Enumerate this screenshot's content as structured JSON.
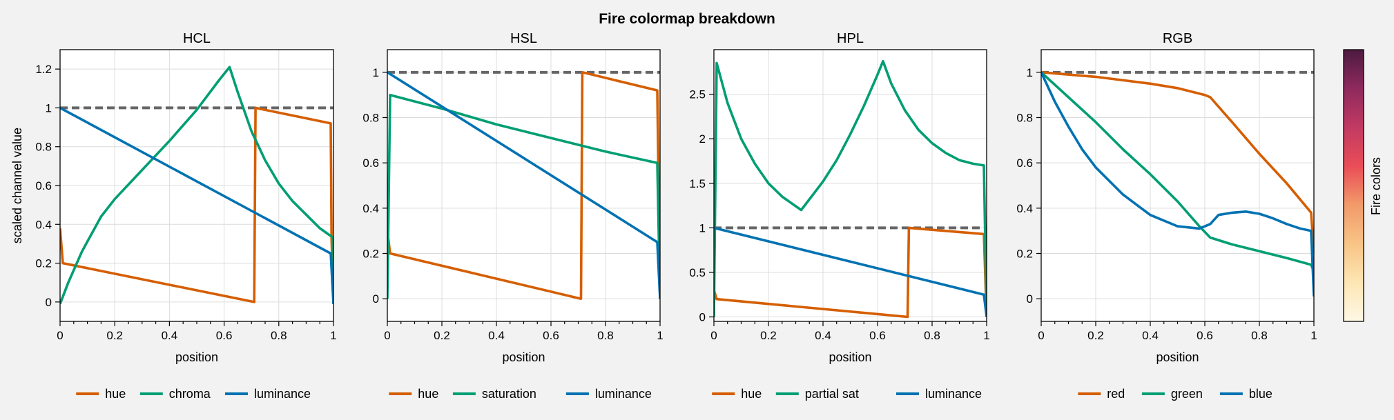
{
  "figure": {
    "title": "Fire colormap breakdown",
    "colorbar_label": "Fire colors",
    "colors": {
      "orange": "#d55e00",
      "green": "#009e73",
      "blue": "#0072b2",
      "reference": "#666666",
      "grid": "#dcdcdc",
      "background": "#f2f2f2"
    },
    "colorbar_stops": [
      "#fff8e6",
      "#fde6b4",
      "#f8c486",
      "#f29a6a",
      "#ea4d57",
      "#c23a62",
      "#8e2a5e",
      "#4c1a40"
    ]
  },
  "chart_data": [
    {
      "type": "line",
      "title": "HCL",
      "xlabel": "position",
      "ylabel": "scaled channel value",
      "xlim": [
        0,
        1
      ],
      "ylim": [
        -0.1,
        1.3
      ],
      "xticks": [
        0,
        0.2,
        0.4,
        0.6,
        0.8,
        1
      ],
      "xtick_labels": [
        "0",
        "0.2",
        "0.4",
        "0.6",
        "0.8",
        "1"
      ],
      "yticks": [
        0,
        0.2,
        0.4,
        0.6,
        0.8,
        1,
        1.2
      ],
      "ytick_labels": [
        "0",
        "0.2",
        "0.4",
        "0.6",
        "0.8",
        "1",
        "1.2"
      ],
      "grid": true,
      "legend": "bottom",
      "reference_line": 1,
      "series": [
        {
          "name": "hue",
          "color": "#d55e00",
          "points": [
            [
              0,
              0.38
            ],
            [
              0.01,
              0.2
            ],
            [
              0.71,
              0
            ],
            [
              0.715,
              1
            ],
            [
              0.99,
              0.92
            ],
            [
              0.993,
              0.33
            ],
            [
              1,
              -0.01
            ]
          ]
        },
        {
          "name": "chroma",
          "color": "#009e73",
          "points": [
            [
              0,
              -0.01
            ],
            [
              0.03,
              0.1
            ],
            [
              0.08,
              0.26
            ],
            [
              0.15,
              0.44
            ],
            [
              0.2,
              0.53
            ],
            [
              0.3,
              0.68
            ],
            [
              0.4,
              0.83
            ],
            [
              0.5,
              0.99
            ],
            [
              0.58,
              1.14
            ],
            [
              0.62,
              1.21
            ],
            [
              0.65,
              1.08
            ],
            [
              0.7,
              0.88
            ],
            [
              0.75,
              0.73
            ],
            [
              0.8,
              0.61
            ],
            [
              0.85,
              0.52
            ],
            [
              0.9,
              0.45
            ],
            [
              0.95,
              0.38
            ],
            [
              1,
              0.33
            ],
            [
              1,
              -0.01
            ]
          ]
        },
        {
          "name": "luminance",
          "color": "#0072b2",
          "points": [
            [
              0,
              1
            ],
            [
              0.99,
              0.25
            ],
            [
              1,
              -0.01
            ]
          ]
        }
      ]
    },
    {
      "type": "line",
      "title": "HSL",
      "xlabel": "position",
      "ylabel": "",
      "xlim": [
        0,
        1
      ],
      "ylim": [
        -0.1,
        1.1
      ],
      "xticks": [
        0,
        0.2,
        0.4,
        0.6,
        0.8,
        1
      ],
      "xtick_labels": [
        "0",
        "0.2",
        "0.4",
        "0.6",
        "0.8",
        "1"
      ],
      "yticks": [
        0,
        0.2,
        0.4,
        0.6,
        0.8,
        1
      ],
      "ytick_labels": [
        "0",
        "0.2",
        "0.4",
        "0.6",
        "0.8",
        "1"
      ],
      "grid": true,
      "legend": "bottom",
      "reference_line": 1,
      "series": [
        {
          "name": "hue",
          "color": "#d55e00",
          "points": [
            [
              0,
              0.3
            ],
            [
              0.01,
              0.2
            ],
            [
              0.71,
              0
            ],
            [
              0.715,
              1
            ],
            [
              0.99,
              0.92
            ],
            [
              1,
              0
            ]
          ]
        },
        {
          "name": "saturation",
          "color": "#009e73",
          "points": [
            [
              0,
              0
            ],
            [
              0.01,
              0.9
            ],
            [
              0.2,
              0.84
            ],
            [
              0.4,
              0.77
            ],
            [
              0.6,
              0.71
            ],
            [
              0.8,
              0.65
            ],
            [
              0.99,
              0.6
            ],
            [
              1,
              0
            ]
          ]
        },
        {
          "name": "luminance",
          "color": "#0072b2",
          "points": [
            [
              0,
              1
            ],
            [
              0.99,
              0.25
            ],
            [
              1,
              0
            ]
          ]
        }
      ]
    },
    {
      "type": "line",
      "title": "HPL",
      "xlabel": "position",
      "ylabel": "",
      "xlim": [
        0,
        1
      ],
      "ylim": [
        -0.05,
        3.0
      ],
      "xticks": [
        0,
        0.2,
        0.4,
        0.6,
        0.8,
        1
      ],
      "xtick_labels": [
        "0",
        "0.2",
        "0.4",
        "0.6",
        "0.8",
        "1"
      ],
      "yticks": [
        0,
        0.5,
        1,
        1.5,
        2,
        2.5
      ],
      "ytick_labels": [
        "0",
        "0.5",
        "1",
        "1.5",
        "2",
        "2.5"
      ],
      "grid": true,
      "legend": "bottom",
      "reference_line": 1,
      "series": [
        {
          "name": "hue",
          "color": "#d55e00",
          "points": [
            [
              0,
              0.3
            ],
            [
              0.01,
              0.2
            ],
            [
              0.71,
              0
            ],
            [
              0.715,
              1
            ],
            [
              0.99,
              0.93
            ],
            [
              1,
              0
            ]
          ]
        },
        {
          "name": "partial sat",
          "color": "#009e73",
          "points": [
            [
              0,
              0
            ],
            [
              0.01,
              2.85
            ],
            [
              0.05,
              2.4
            ],
            [
              0.1,
              2.0
            ],
            [
              0.15,
              1.72
            ],
            [
              0.2,
              1.5
            ],
            [
              0.25,
              1.35
            ],
            [
              0.32,
              1.2
            ],
            [
              0.35,
              1.32
            ],
            [
              0.4,
              1.52
            ],
            [
              0.45,
              1.76
            ],
            [
              0.5,
              2.05
            ],
            [
              0.55,
              2.37
            ],
            [
              0.6,
              2.72
            ],
            [
              0.62,
              2.87
            ],
            [
              0.65,
              2.62
            ],
            [
              0.7,
              2.32
            ],
            [
              0.75,
              2.1
            ],
            [
              0.8,
              1.95
            ],
            [
              0.85,
              1.84
            ],
            [
              0.9,
              1.76
            ],
            [
              0.95,
              1.72
            ],
            [
              0.99,
              1.7
            ],
            [
              1,
              0
            ]
          ]
        },
        {
          "name": "luminance",
          "color": "#0072b2",
          "points": [
            [
              0,
              1
            ],
            [
              0.99,
              0.25
            ],
            [
              1,
              0
            ]
          ]
        }
      ]
    },
    {
      "type": "line",
      "title": "RGB",
      "xlabel": "position",
      "ylabel": "",
      "xlim": [
        0,
        1
      ],
      "ylim": [
        -0.1,
        1.1
      ],
      "xticks": [
        0,
        0.2,
        0.4,
        0.6,
        0.8,
        1
      ],
      "xtick_labels": [
        "0",
        "0.2",
        "0.4",
        "0.6",
        "0.8",
        "1"
      ],
      "yticks": [
        0,
        0.2,
        0.4,
        0.6,
        0.8,
        1
      ],
      "ytick_labels": [
        "0",
        "0.2",
        "0.4",
        "0.6",
        "0.8",
        "1"
      ],
      "grid": true,
      "legend": "bottom",
      "reference_line": 1,
      "series": [
        {
          "name": "red",
          "color": "#d55e00",
          "points": [
            [
              0,
              1
            ],
            [
              0.2,
              0.98
            ],
            [
              0.4,
              0.95
            ],
            [
              0.5,
              0.93
            ],
            [
              0.6,
              0.9
            ],
            [
              0.62,
              0.89
            ],
            [
              0.7,
              0.78
            ],
            [
              0.8,
              0.64
            ],
            [
              0.9,
              0.51
            ],
            [
              0.99,
              0.38
            ],
            [
              1,
              0.2
            ]
          ]
        },
        {
          "name": "green",
          "color": "#009e73",
          "points": [
            [
              0,
              1
            ],
            [
              0.1,
              0.89
            ],
            [
              0.2,
              0.78
            ],
            [
              0.3,
              0.66
            ],
            [
              0.4,
              0.55
            ],
            [
              0.5,
              0.43
            ],
            [
              0.58,
              0.32
            ],
            [
              0.62,
              0.27
            ],
            [
              0.7,
              0.24
            ],
            [
              0.8,
              0.21
            ],
            [
              0.9,
              0.18
            ],
            [
              0.99,
              0.15
            ],
            [
              1,
              0.12
            ]
          ]
        },
        {
          "name": "blue",
          "color": "#0072b2",
          "points": [
            [
              0,
              1
            ],
            [
              0.05,
              0.87
            ],
            [
              0.1,
              0.76
            ],
            [
              0.15,
              0.66
            ],
            [
              0.2,
              0.58
            ],
            [
              0.3,
              0.46
            ],
            [
              0.4,
              0.37
            ],
            [
              0.5,
              0.32
            ],
            [
              0.58,
              0.31
            ],
            [
              0.6,
              0.32
            ],
            [
              0.62,
              0.33
            ],
            [
              0.65,
              0.37
            ],
            [
              0.7,
              0.38
            ],
            [
              0.75,
              0.385
            ],
            [
              0.8,
              0.375
            ],
            [
              0.85,
              0.355
            ],
            [
              0.9,
              0.33
            ],
            [
              0.95,
              0.31
            ],
            [
              0.99,
              0.3
            ],
            [
              1,
              0.01
            ]
          ]
        }
      ]
    }
  ]
}
